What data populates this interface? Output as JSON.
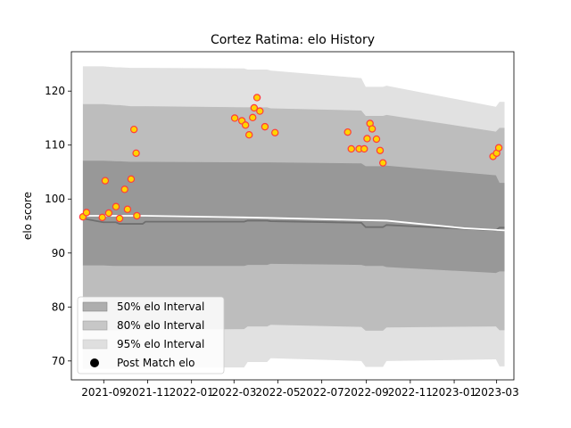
{
  "chart_data": {
    "type": "scatter",
    "title": "Cortez Ratima: elo History",
    "xlabel": "",
    "ylabel": "elo score",
    "x_ticks": [
      "2021-09",
      "2021-11",
      "2022-01",
      "2022-03",
      "2022-05",
      "2022-07",
      "2022-09",
      "2022-11",
      "2023-01",
      "2023-03"
    ],
    "x_tick_dates": [
      "2021-09-01",
      "2021-11-01",
      "2022-01-01",
      "2022-03-01",
      "2022-05-01",
      "2022-07-01",
      "2022-09-01",
      "2022-11-01",
      "2023-01-01",
      "2023-03-01"
    ],
    "xlim": [
      "2021-07-18",
      "2023-03-25"
    ],
    "y_ticks": [
      70,
      80,
      90,
      100,
      110,
      120
    ],
    "ylim": [
      66.5,
      127.3
    ],
    "grid": false,
    "legend_position": "lower-left",
    "legend": [
      {
        "label": "50% elo Interval",
        "color": "#7f7f7f",
        "opacity": 0.6
      },
      {
        "label": "80% elo Interval",
        "color": "#9a9a9a",
        "opacity": 0.5
      },
      {
        "label": "95% elo Interval",
        "color": "#c8c8c8",
        "opacity": 0.55
      },
      {
        "label": "Post Match elo",
        "color": "#000000",
        "marker": "circle"
      }
    ],
    "band_x": [
      "2021-08-03",
      "2021-08-31",
      "2021-09-18",
      "2021-09-23",
      "2021-10-08",
      "2021-10-25",
      "2021-10-29",
      "2022-03-15",
      "2022-03-20",
      "2022-04-16",
      "2022-04-21",
      "2022-08-25",
      "2022-08-31",
      "2022-09-24",
      "2022-09-29",
      "2023-02-28",
      "2023-03-05",
      "2023-03-12"
    ],
    "bands": [
      {
        "name": "95% elo Interval",
        "color": "#c8c8c8",
        "opacity": 0.55,
        "upper": [
          124.6,
          124.6,
          124.4,
          124.4,
          124.3,
          124.3,
          124.3,
          124.2,
          124.0,
          124.0,
          123.8,
          122.4,
          120.8,
          120.8,
          121.0,
          117.1,
          118.0,
          118.0
        ],
        "lower": [
          68.5,
          68.5,
          68.6,
          68.6,
          68.7,
          68.7,
          68.7,
          68.8,
          69.8,
          69.8,
          70.5,
          70.0,
          68.9,
          68.9,
          70.0,
          70.3,
          69.0,
          69.0
        ]
      },
      {
        "name": "80% elo Interval",
        "color": "#9a9a9a",
        "opacity": 0.5,
        "upper": [
          117.6,
          117.6,
          117.4,
          117.4,
          117.2,
          117.2,
          117.2,
          117.0,
          117.0,
          117.0,
          116.8,
          116.4,
          115.4,
          115.4,
          115.6,
          112.5,
          113.2,
          113.2
        ],
        "lower": [
          75.6,
          75.6,
          75.7,
          75.7,
          75.8,
          75.8,
          75.8,
          75.9,
          76.4,
          76.4,
          76.7,
          76.3,
          75.6,
          75.6,
          76.2,
          76.4,
          75.7,
          75.7
        ]
      },
      {
        "name": "50% elo Interval",
        "color": "#7f7f7f",
        "opacity": 0.6,
        "upper": [
          107.1,
          107.1,
          107.0,
          107.0,
          106.9,
          106.9,
          106.9,
          106.8,
          106.8,
          106.8,
          106.8,
          106.6,
          106.1,
          106.1,
          106.2,
          104.4,
          103.0,
          103.0
        ],
        "lower": [
          87.7,
          87.7,
          87.6,
          87.6,
          87.6,
          87.6,
          87.6,
          87.6,
          87.8,
          87.8,
          88.0,
          87.8,
          87.6,
          87.6,
          87.4,
          86.3,
          86.6,
          86.6
        ]
      }
    ],
    "median_line": {
      "color": "#6f6f6f",
      "x": [
        "2021-08-03",
        "2021-08-31",
        "2021-09-18",
        "2021-09-23",
        "2021-10-08",
        "2021-10-25",
        "2021-10-29",
        "2022-03-15",
        "2022-03-20",
        "2022-04-16",
        "2022-04-21",
        "2022-08-25",
        "2022-08-31",
        "2022-09-24",
        "2022-09-29",
        "2023-02-28",
        "2023-03-05",
        "2023-03-12"
      ],
      "y": [
        96.4,
        95.7,
        95.7,
        95.4,
        95.4,
        95.4,
        95.8,
        95.8,
        96.0,
        96.0,
        95.9,
        95.6,
        94.8,
        94.8,
        95.2,
        94.2,
        94.7,
        94.7
      ]
    },
    "mean_line": {
      "color": "#ffffff",
      "x": [
        "2021-08-03",
        "2021-10-29",
        "2022-03-15",
        "2022-04-21",
        "2022-08-25",
        "2022-09-29",
        "2023-01-15",
        "2023-03-12"
      ],
      "y": [
        96.9,
        96.9,
        96.6,
        96.5,
        96.1,
        96.0,
        94.6,
        94.2
      ]
    },
    "points": {
      "name": "Post Match elo",
      "face_color": "#ffd400",
      "edge_color": "#ff3c3c",
      "x": [
        "2021-08-03",
        "2021-08-08",
        "2021-08-30",
        "2021-09-03",
        "2021-09-08",
        "2021-09-18",
        "2021-09-23",
        "2021-09-30",
        "2021-10-04",
        "2021-10-09",
        "2021-10-13",
        "2021-10-16",
        "2021-10-17",
        "2022-03-02",
        "2022-03-12",
        "2022-03-17",
        "2022-03-22",
        "2022-03-27",
        "2022-03-29",
        "2022-04-02",
        "2022-04-06",
        "2022-04-13",
        "2022-04-27",
        "2022-08-06",
        "2022-08-11",
        "2022-08-22",
        "2022-08-29",
        "2022-09-02",
        "2022-09-06",
        "2022-09-09",
        "2022-09-15",
        "2022-09-20",
        "2022-09-24",
        "2023-02-24",
        "2023-03-01",
        "2023-03-04"
      ],
      "y": [
        96.7,
        97.5,
        96.6,
        103.4,
        97.4,
        98.6,
        96.4,
        101.8,
        98.1,
        103.7,
        112.9,
        108.5,
        96.9,
        115.0,
        114.5,
        113.7,
        111.9,
        115.1,
        116.9,
        118.8,
        116.3,
        113.4,
        112.3,
        112.4,
        109.3,
        109.3,
        109.3,
        111.2,
        114.0,
        113.0,
        111.1,
        109.0,
        106.7,
        107.9,
        108.5,
        109.5
      ]
    }
  }
}
